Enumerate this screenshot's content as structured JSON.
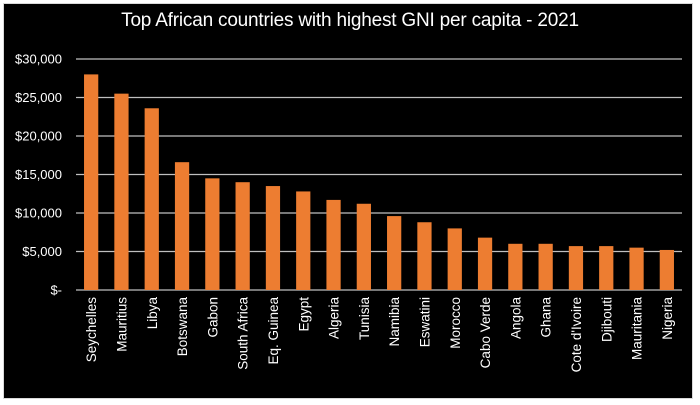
{
  "chart_data": {
    "type": "bar",
    "title": "Top African countries with highest GNI per capita - 2021",
    "xlabel": "",
    "ylabel": "",
    "ylim": [
      0,
      30000
    ],
    "yticks": [
      0,
      5000,
      10000,
      15000,
      20000,
      25000,
      30000
    ],
    "ytick_labels": [
      "$-",
      "$5,000",
      "$10,000",
      "$15,000",
      "$20,000",
      "$25,000",
      "$30,000"
    ],
    "grid": true,
    "legend": "none",
    "categories": [
      "Seychelles",
      "Mauritius",
      "Libya",
      "Botswana",
      "Gabon",
      "South Africa",
      "Eq. Guinea",
      "Egypt",
      "Algeria",
      "Tunisia",
      "Namibia",
      "Eswatini",
      "Morocco",
      "Cabo Verde",
      "Angola",
      "Ghana",
      "Cote d'Ivoire",
      "Djibouti",
      "Mauritania",
      "Nigeria"
    ],
    "values": [
      28000,
      25500,
      23600,
      16600,
      14500,
      14000,
      13500,
      12800,
      11700,
      11200,
      9600,
      8800,
      8000,
      6800,
      6000,
      6000,
      5700,
      5700,
      5500,
      5200
    ],
    "colors": {
      "bar": "#ed7d31",
      "background": "#000000",
      "grid": "#bfbfbf",
      "text": "#ffffff"
    }
  }
}
